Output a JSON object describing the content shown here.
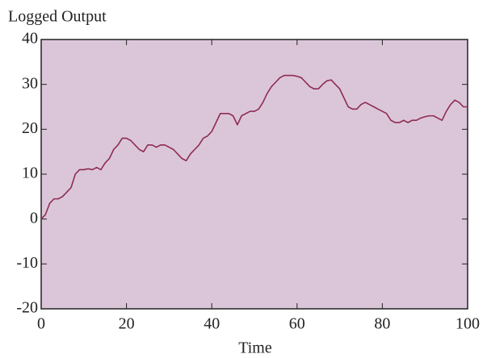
{
  "chart_data": {
    "type": "line",
    "y_label": "Logged Output",
    "x_label": "Time",
    "x": [
      0,
      1,
      2,
      3,
      4,
      5,
      6,
      7,
      8,
      9,
      10,
      11,
      12,
      13,
      14,
      15,
      16,
      17,
      18,
      19,
      20,
      21,
      22,
      23,
      24,
      25,
      26,
      27,
      28,
      29,
      30,
      31,
      32,
      33,
      34,
      35,
      36,
      37,
      38,
      39,
      40,
      41,
      42,
      43,
      44,
      45,
      46,
      47,
      48,
      49,
      50,
      51,
      52,
      53,
      54,
      55,
      56,
      57,
      58,
      59,
      60,
      61,
      62,
      63,
      64,
      65,
      66,
      67,
      68,
      69,
      70,
      71,
      72,
      73,
      74,
      75,
      76,
      77,
      78,
      79,
      80,
      81,
      82,
      83,
      84,
      85,
      86,
      87,
      88,
      89,
      90,
      91,
      92,
      93,
      94,
      95,
      96,
      97,
      98,
      99,
      100
    ],
    "values": [
      0,
      1,
      3.5,
      4.5,
      4.5,
      5,
      6,
      7,
      10,
      11,
      11,
      11.2,
      11,
      11.5,
      11,
      12.5,
      13.5,
      15.5,
      16.5,
      18,
      18,
      17.5,
      16.5,
      15.5,
      15,
      16.5,
      16.5,
      16,
      16.5,
      16.5,
      16,
      15.5,
      14.5,
      13.5,
      13,
      14.5,
      15.5,
      16.5,
      18,
      18.5,
      19.5,
      21.5,
      23.5,
      23.5,
      23.5,
      23,
      21,
      23,
      23.5,
      24,
      24,
      24.5,
      26,
      28,
      29.5,
      30.5,
      31.5,
      32,
      32,
      32,
      31.8,
      31.5,
      30.5,
      29.5,
      29,
      29,
      30,
      30.8,
      31,
      30,
      29,
      27,
      25,
      24.5,
      24.5,
      25.5,
      26,
      25.5,
      25,
      24.5,
      24,
      23.5,
      22,
      21.5,
      21.5,
      22,
      21.5,
      22,
      22,
      22.5,
      22.8,
      23,
      23,
      22.5,
      22,
      24,
      25.5,
      26.5,
      26,
      25,
      25
    ],
    "color": "#8e2c52",
    "background": "#dbc6d9",
    "xlim": [
      0,
      100
    ],
    "xticks": [
      0,
      20,
      40,
      60,
      80,
      100
    ],
    "ylim": [
      -20,
      40
    ],
    "yticks": [
      -20,
      -10,
      0,
      10,
      20,
      30,
      40
    ]
  }
}
